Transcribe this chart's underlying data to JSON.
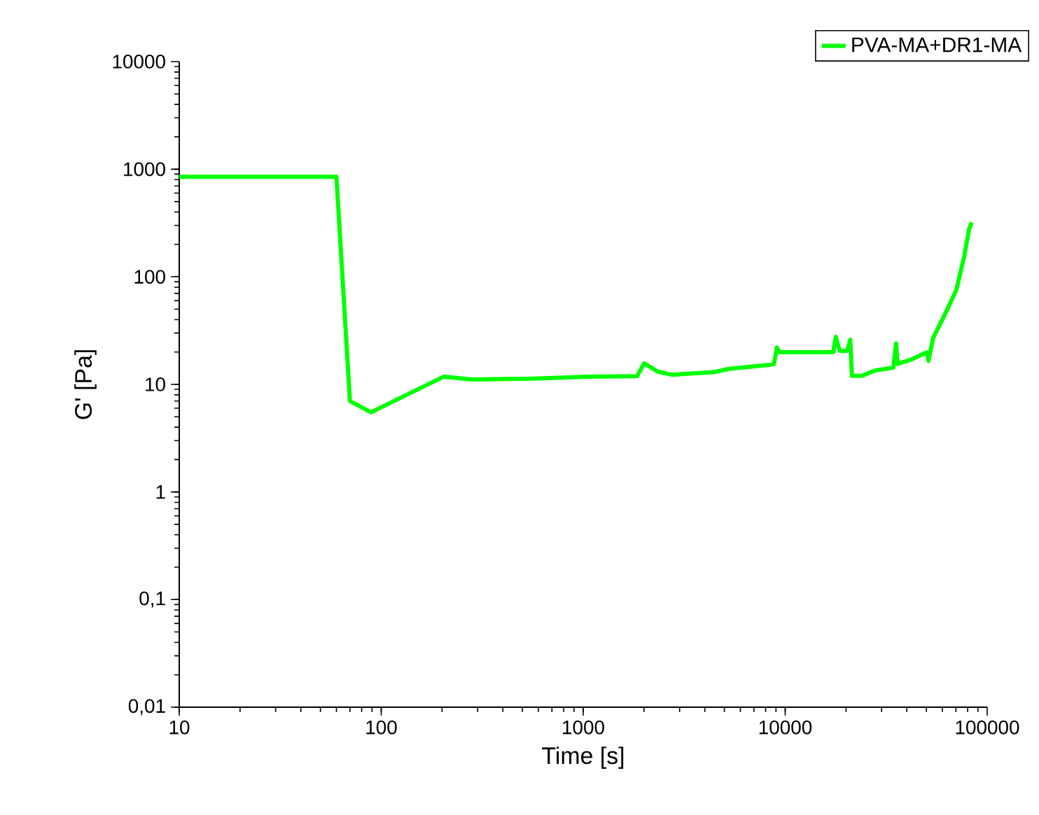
{
  "chart_data": {
    "type": "line",
    "xlabel": "Time [s]",
    "ylabel": "G' [Pa]",
    "log": "xy",
    "xlim": [
      10,
      100000
    ],
    "ylim": [
      0.01,
      10000
    ],
    "xticks": [
      10,
      100,
      1000,
      10000,
      100000
    ],
    "yticks": [
      {
        "value": 0.01,
        "label": "0,01"
      },
      {
        "value": 0.1,
        "label": "0,1"
      },
      1,
      10,
      100,
      1000,
      10000
    ],
    "legend": "top right",
    "grid": false,
    "marker": "none",
    "line_style": "solid",
    "series": [
      {
        "name": "PVA-MA+DR1-MA",
        "color": "#00ff00",
        "x": [
          10,
          60,
          70,
          89,
          204,
          281,
          558,
          1057,
          1850,
          2000,
          2350,
          2750,
          4450,
          5200,
          8400,
          8800,
          9100,
          9400,
          17300,
          17800,
          18600,
          20300,
          21000,
          21400,
          24000,
          25800,
          28000,
          34300,
          35400,
          36000,
          41700,
          50400,
          51200,
          54000,
          60000,
          70300,
          77000,
          81500,
          84000
        ],
        "values": [
          850,
          850,
          7,
          5.5,
          11.8,
          11.1,
          11.3,
          11.8,
          11.9,
          15.7,
          13.1,
          12.3,
          13,
          13.9,
          15.2,
          15.5,
          22,
          19.9,
          19.9,
          27.7,
          20.5,
          20.5,
          26,
          12,
          12,
          12.7,
          13.5,
          14.3,
          24,
          15.5,
          16.9,
          19.9,
          16.5,
          27,
          40,
          75,
          155,
          283,
          320
        ]
      }
    ]
  }
}
